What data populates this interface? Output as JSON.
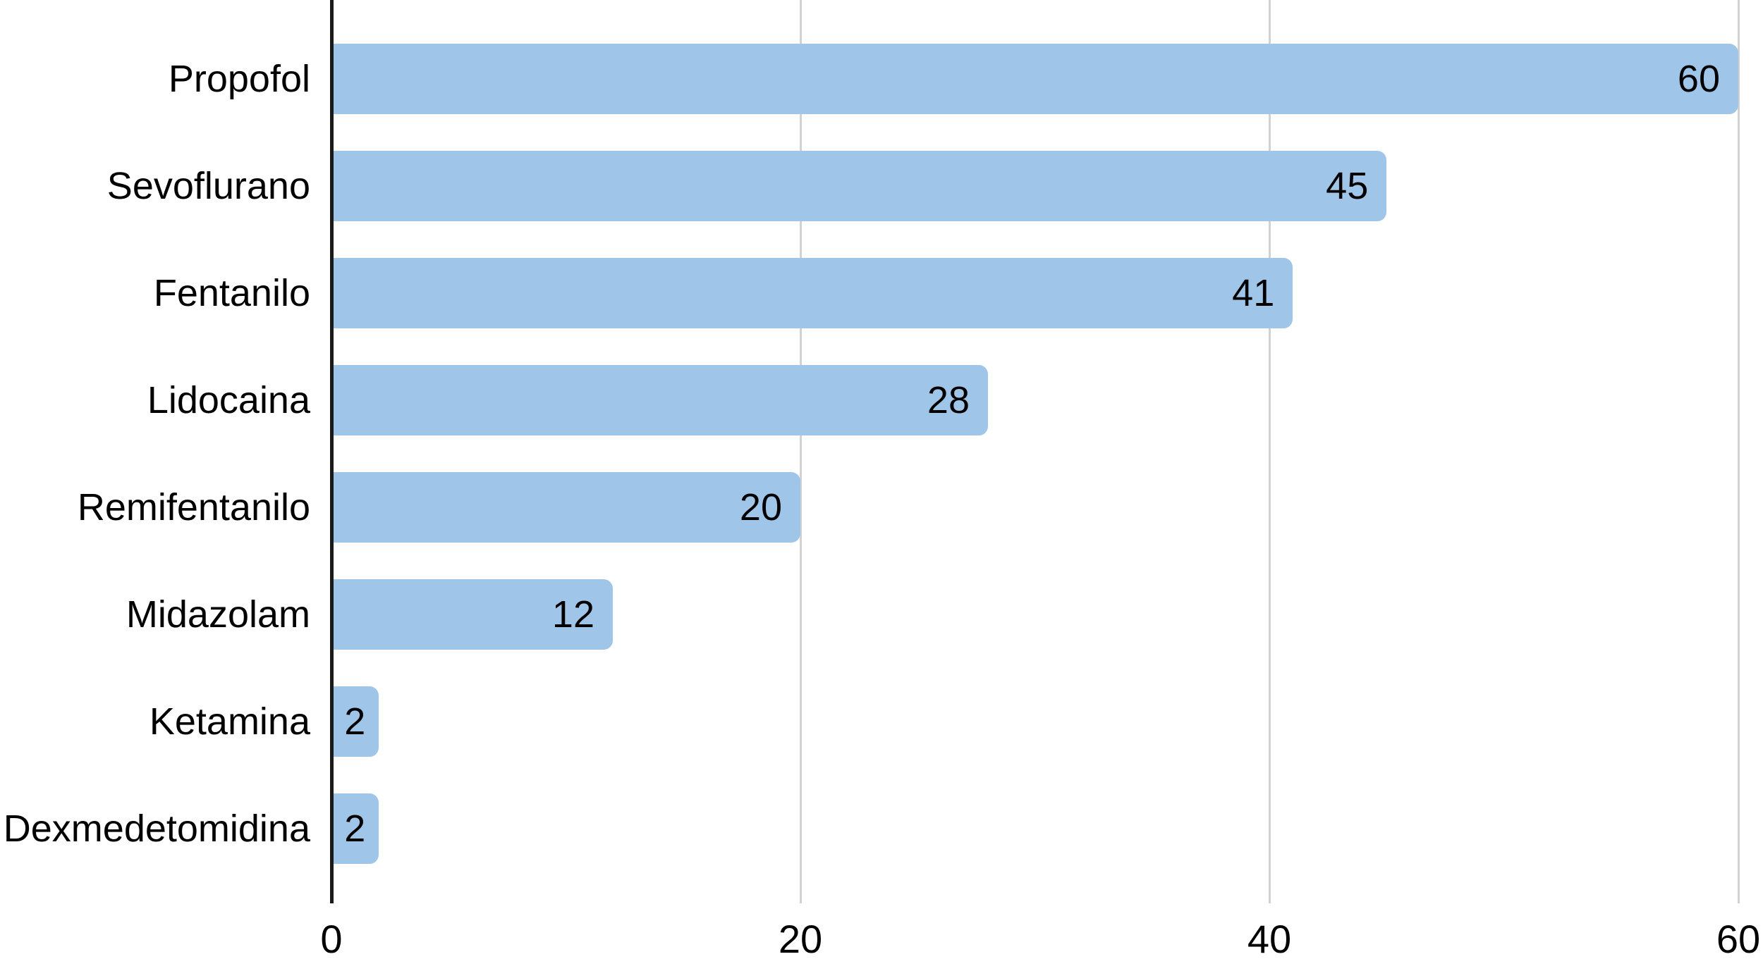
{
  "chart_data": {
    "type": "bar",
    "orientation": "horizontal",
    "title": "",
    "xlabel": "",
    "ylabel": "",
    "categories": [
      "Propofol",
      "Sevoflurano",
      "Fentanilo",
      "Lidocaina",
      "Remifentanilo",
      "Midazolam",
      "Ketamina",
      "Dexmedetomidina"
    ],
    "values": [
      60,
      45,
      41,
      28,
      20,
      12,
      2,
      2
    ],
    "xlim": [
      0,
      60
    ],
    "x_ticks": [
      "0",
      "20",
      "40",
      "60"
    ],
    "x_tick_values": [
      0,
      20,
      40,
      60
    ],
    "grid": "vertical-gridlines-on",
    "legend": "none",
    "colors": {
      "bar": "#9fc5e8",
      "gridline": "#d2d2d2",
      "axis": "#1a1a1a",
      "text": "#000000",
      "background": "#ffffff"
    }
  }
}
